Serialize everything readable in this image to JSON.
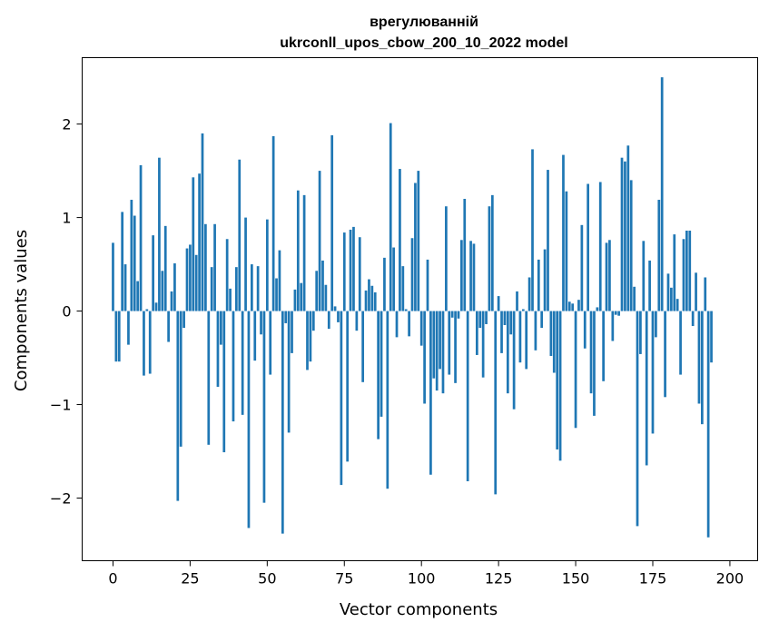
{
  "chart_data": {
    "type": "bar",
    "title_line1": "врегулюванній",
    "title_line2": "ukrconll_upos_cbow_200_10_2022 model",
    "xlabel": "Vector components",
    "ylabel": "Components values",
    "xlim": [
      -10,
      209
    ],
    "ylim": [
      -2.67,
      2.71
    ],
    "xticks": [
      0,
      25,
      50,
      75,
      100,
      125,
      150,
      175,
      200
    ],
    "xtick_labels": [
      "0",
      "25",
      "50",
      "75",
      "100",
      "125",
      "150",
      "175",
      "200"
    ],
    "yticks": [
      -2,
      -1,
      0,
      1,
      2
    ],
    "ytick_labels": [
      "−2",
      "−1",
      "0",
      "1",
      "2"
    ],
    "bar_color": "#1f77b4",
    "grid": false,
    "values": [
      0.73,
      -0.54,
      -0.54,
      1.06,
      0.5,
      -0.36,
      1.19,
      1.02,
      0.32,
      1.56,
      -0.69,
      0.02,
      -0.67,
      0.81,
      0.09,
      1.64,
      0.43,
      0.91,
      -0.33,
      0.21,
      0.51,
      -2.03,
      -1.45,
      -0.18,
      0.67,
      0.71,
      1.43,
      0.6,
      1.47,
      1.9,
      0.93,
      -1.43,
      0.47,
      0.93,
      -0.81,
      -0.36,
      -1.51,
      0.77,
      0.24,
      -1.18,
      0.47,
      1.62,
      -1.11,
      1.0,
      -2.32,
      0.5,
      -0.53,
      0.48,
      -0.25,
      -2.05,
      0.98,
      -0.68,
      1.87,
      0.35,
      0.65,
      -2.38,
      -0.13,
      -1.3,
      -0.45,
      0.23,
      1.29,
      0.3,
      1.24,
      -0.63,
      -0.54,
      -0.21,
      0.43,
      1.5,
      0.54,
      0.28,
      -0.19,
      1.88,
      0.05,
      -0.12,
      -1.86,
      0.84,
      -1.61,
      0.87,
      0.9,
      -0.21,
      0.79,
      -0.76,
      0.22,
      0.34,
      0.27,
      0.2,
      -1.37,
      -1.13,
      0.57,
      -1.9,
      2.01,
      0.68,
      -0.28,
      1.52,
      0.48,
      0.02,
      -0.27,
      0.78,
      1.37,
      1.5,
      -0.37,
      -0.99,
      0.55,
      -1.75,
      -0.72,
      -0.85,
      -0.62,
      -0.88,
      1.12,
      -0.68,
      -0.07,
      -0.77,
      -0.08,
      0.76,
      1.2,
      -1.82,
      0.75,
      0.72,
      -0.47,
      -0.18,
      -0.71,
      -0.14,
      1.12,
      1.24,
      -1.96,
      0.16,
      -0.45,
      -0.15,
      -0.88,
      -0.25,
      -1.05,
      0.21,
      -0.55,
      0.02,
      -0.62,
      0.36,
      1.73,
      -0.42,
      0.55,
      -0.18,
      0.66,
      1.51,
      -0.48,
      -0.66,
      -1.48,
      -1.6,
      1.67,
      1.28,
      0.1,
      0.08,
      -1.25,
      0.12,
      0.92,
      -0.4,
      1.36,
      -0.88,
      -1.12,
      0.04,
      1.38,
      -0.75,
      0.73,
      0.76,
      -0.32,
      -0.04,
      -0.05,
      1.64,
      1.6,
      1.77,
      1.4,
      0.26,
      -2.3,
      -0.46,
      0.75,
      -1.65,
      0.54,
      -1.31,
      -0.28,
      1.19,
      2.5,
      -0.92,
      0.4,
      0.25,
      0.82,
      0.13,
      -0.68,
      0.77,
      0.86,
      0.86,
      -0.16,
      0.41,
      -0.99,
      -1.21,
      0.36,
      -2.42,
      -0.55
    ]
  }
}
